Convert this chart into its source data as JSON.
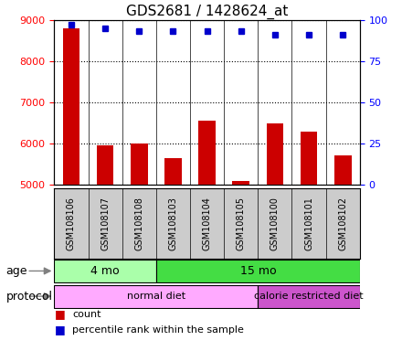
{
  "title": "GDS2681 / 1428624_at",
  "samples": [
    "GSM108106",
    "GSM108107",
    "GSM108108",
    "GSM108103",
    "GSM108104",
    "GSM108105",
    "GSM108100",
    "GSM108101",
    "GSM108102"
  ],
  "counts": [
    8800,
    5950,
    6010,
    5650,
    6560,
    5080,
    6490,
    6280,
    5720
  ],
  "percentile_ranks": [
    97,
    95,
    93,
    93,
    93,
    93,
    91,
    91,
    91
  ],
  "ylim": [
    5000,
    9000
  ],
  "right_ylim": [
    0,
    100
  ],
  "right_yticks": [
    0,
    25,
    50,
    75,
    100
  ],
  "left_yticks": [
    5000,
    6000,
    7000,
    8000,
    9000
  ],
  "bar_color": "#cc0000",
  "dot_color": "#0000cc",
  "age_groups": [
    {
      "label": "4 mo",
      "start": 0,
      "end": 3,
      "color": "#aaffaa"
    },
    {
      "label": "15 mo",
      "start": 3,
      "end": 9,
      "color": "#44dd44"
    }
  ],
  "protocol_groups": [
    {
      "label": "normal diet",
      "start": 0,
      "end": 6,
      "color": "#ffaaff"
    },
    {
      "label": "calorie restricted diet",
      "start": 6,
      "end": 9,
      "color": "#cc55cc"
    }
  ],
  "background_color": "#ffffff",
  "plot_bg_color": "#ffffff",
  "sample_bg_color": "#cccccc",
  "grid_color": "#000000",
  "title_fontsize": 11,
  "tick_fontsize": 8,
  "label_fontsize": 9
}
